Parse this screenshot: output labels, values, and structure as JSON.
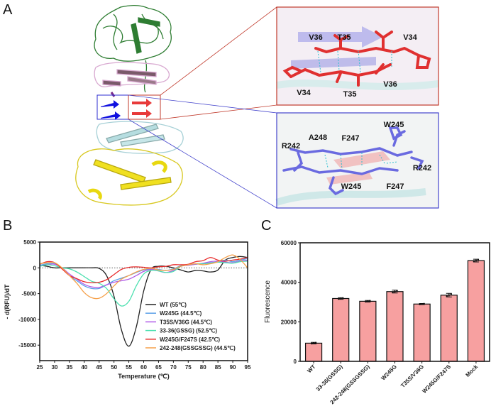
{
  "panel_labels": {
    "a": "A",
    "b": "B",
    "c": "C"
  },
  "panel_a": {
    "inset_top_labels": [
      "V36",
      "T35",
      "V34",
      "V34",
      "T35",
      "V36"
    ],
    "inset_bottom_labels": [
      "W245",
      "A248",
      "F247",
      "R242",
      "R242",
      "W245",
      "F247"
    ],
    "colors": {
      "domain1": "#2e7d32",
      "domain2": "#d8a8d0",
      "strand_blue": "#1010e0",
      "strand_red": "#e83a3a",
      "domain3": "#b6dde0",
      "domain4": "#f0e020",
      "inset_red_frame": "#c0392b",
      "inset_blue_frame": "#4444cc"
    }
  },
  "chart_data": [
    {
      "type": "line",
      "xlabel": "Temperature (℃)",
      "ylabel": "- d(RFU)/dT",
      "xlim": [
        25,
        95
      ],
      "ylim": [
        -18000,
        5000
      ],
      "xticks": [
        "25",
        "30",
        "35",
        "40",
        "45",
        "50",
        "55",
        "60",
        "65",
        "70",
        "75",
        "80",
        "85",
        "90",
        "95"
      ],
      "yticks": [
        "5000",
        "0",
        "-5000",
        "-10000",
        "-15000"
      ],
      "zero_line": "dotted",
      "legend_position": "lower-right",
      "x": [
        25,
        27.5,
        30,
        32.5,
        35,
        37.5,
        40,
        42.5,
        45,
        47.5,
        50,
        52.5,
        55,
        57.5,
        60,
        62.5,
        65,
        67.5,
        70,
        72.5,
        75,
        77.5,
        80,
        82.5,
        85,
        87.5,
        90,
        92.5,
        95
      ],
      "series": [
        {
          "name": "WT (55℃)",
          "color": "#222222",
          "values": [
            500,
            300,
            0,
            0,
            0,
            0,
            0,
            0,
            -100,
            -1500,
            -5500,
            -12000,
            -15200,
            -11500,
            -4500,
            -300,
            300,
            300,
            0,
            -400,
            -800,
            -500,
            -600,
            -800,
            -400,
            1500,
            2000,
            2200,
            2000
          ]
        },
        {
          "name": "W245G (44.5℃)",
          "color": "#5aa0e8",
          "values": [
            500,
            800,
            800,
            0,
            -1500,
            -2500,
            -3500,
            -4000,
            -4000,
            -3300,
            -2500,
            -2000,
            -1500,
            -900,
            -400,
            -200,
            -300,
            -500,
            -200,
            400,
            600,
            700,
            800,
            1000,
            1200,
            1500,
            1200,
            1500,
            1800
          ]
        },
        {
          "name": "T35S/V36G (44.5℃)",
          "color": "#b05be8",
          "values": [
            400,
            600,
            700,
            0,
            -1200,
            -2200,
            -3200,
            -3700,
            -3800,
            -3300,
            -2800,
            -2500,
            -2200,
            -1500,
            -700,
            -300,
            -600,
            -900,
            -500,
            300,
            500,
            700,
            900,
            1200,
            1300,
            1100,
            1000,
            1300,
            1500
          ]
        },
        {
          "name": "33-36(GSSG) (52.5℃)",
          "color": "#4de0b0",
          "values": [
            300,
            600,
            400,
            0,
            -200,
            -800,
            -1700,
            -2600,
            -3000,
            -4000,
            -6000,
            -7400,
            -6500,
            -3500,
            -1200,
            -500,
            -600,
            -900,
            -700,
            300,
            600,
            800,
            800,
            900,
            1100,
            1000,
            900,
            1200,
            1300
          ]
        },
        {
          "name": "W245G/F247S (42.5℃)",
          "color": "#e82b2b",
          "values": [
            700,
            1200,
            1000,
            -200,
            -1500,
            -2100,
            -2700,
            -2900,
            -2800,
            -2300,
            -1300,
            -300,
            100,
            200,
            100,
            0,
            200,
            300,
            600,
            600,
            700,
            1200,
            1400,
            2000,
            1500,
            1300,
            1500,
            1700,
            2000
          ]
        },
        {
          "name": "242-248(GSSGSSG) (44.5℃)",
          "color": "#f5a04a",
          "values": [
            800,
            1000,
            1000,
            0,
            -1500,
            -3000,
            -4800,
            -5800,
            -5900,
            -5000,
            -3500,
            -2200,
            -1500,
            -800,
            -300,
            -100,
            -400,
            -500,
            -300,
            300,
            600,
            800,
            600,
            800,
            1200,
            2000,
            2500,
            1600,
            0
          ]
        }
      ]
    },
    {
      "type": "bar",
      "ylabel": "Fluorescence",
      "ylim": [
        0,
        60000
      ],
      "yticks": [
        "0",
        "20000",
        "40000",
        "60000"
      ],
      "categories": [
        "WT",
        "33-36(GSSG)",
        "242-248(GSSGSSG)",
        "W245G",
        "T35S/V36G",
        "W245G/F247S",
        "Mock"
      ],
      "values": [
        9200,
        31800,
        30400,
        35300,
        29000,
        33500,
        51000
      ],
      "errors": [
        400,
        400,
        400,
        700,
        300,
        900,
        700
      ],
      "bar_color": "#f7a0a0",
      "edge_color": "#111111"
    }
  ]
}
